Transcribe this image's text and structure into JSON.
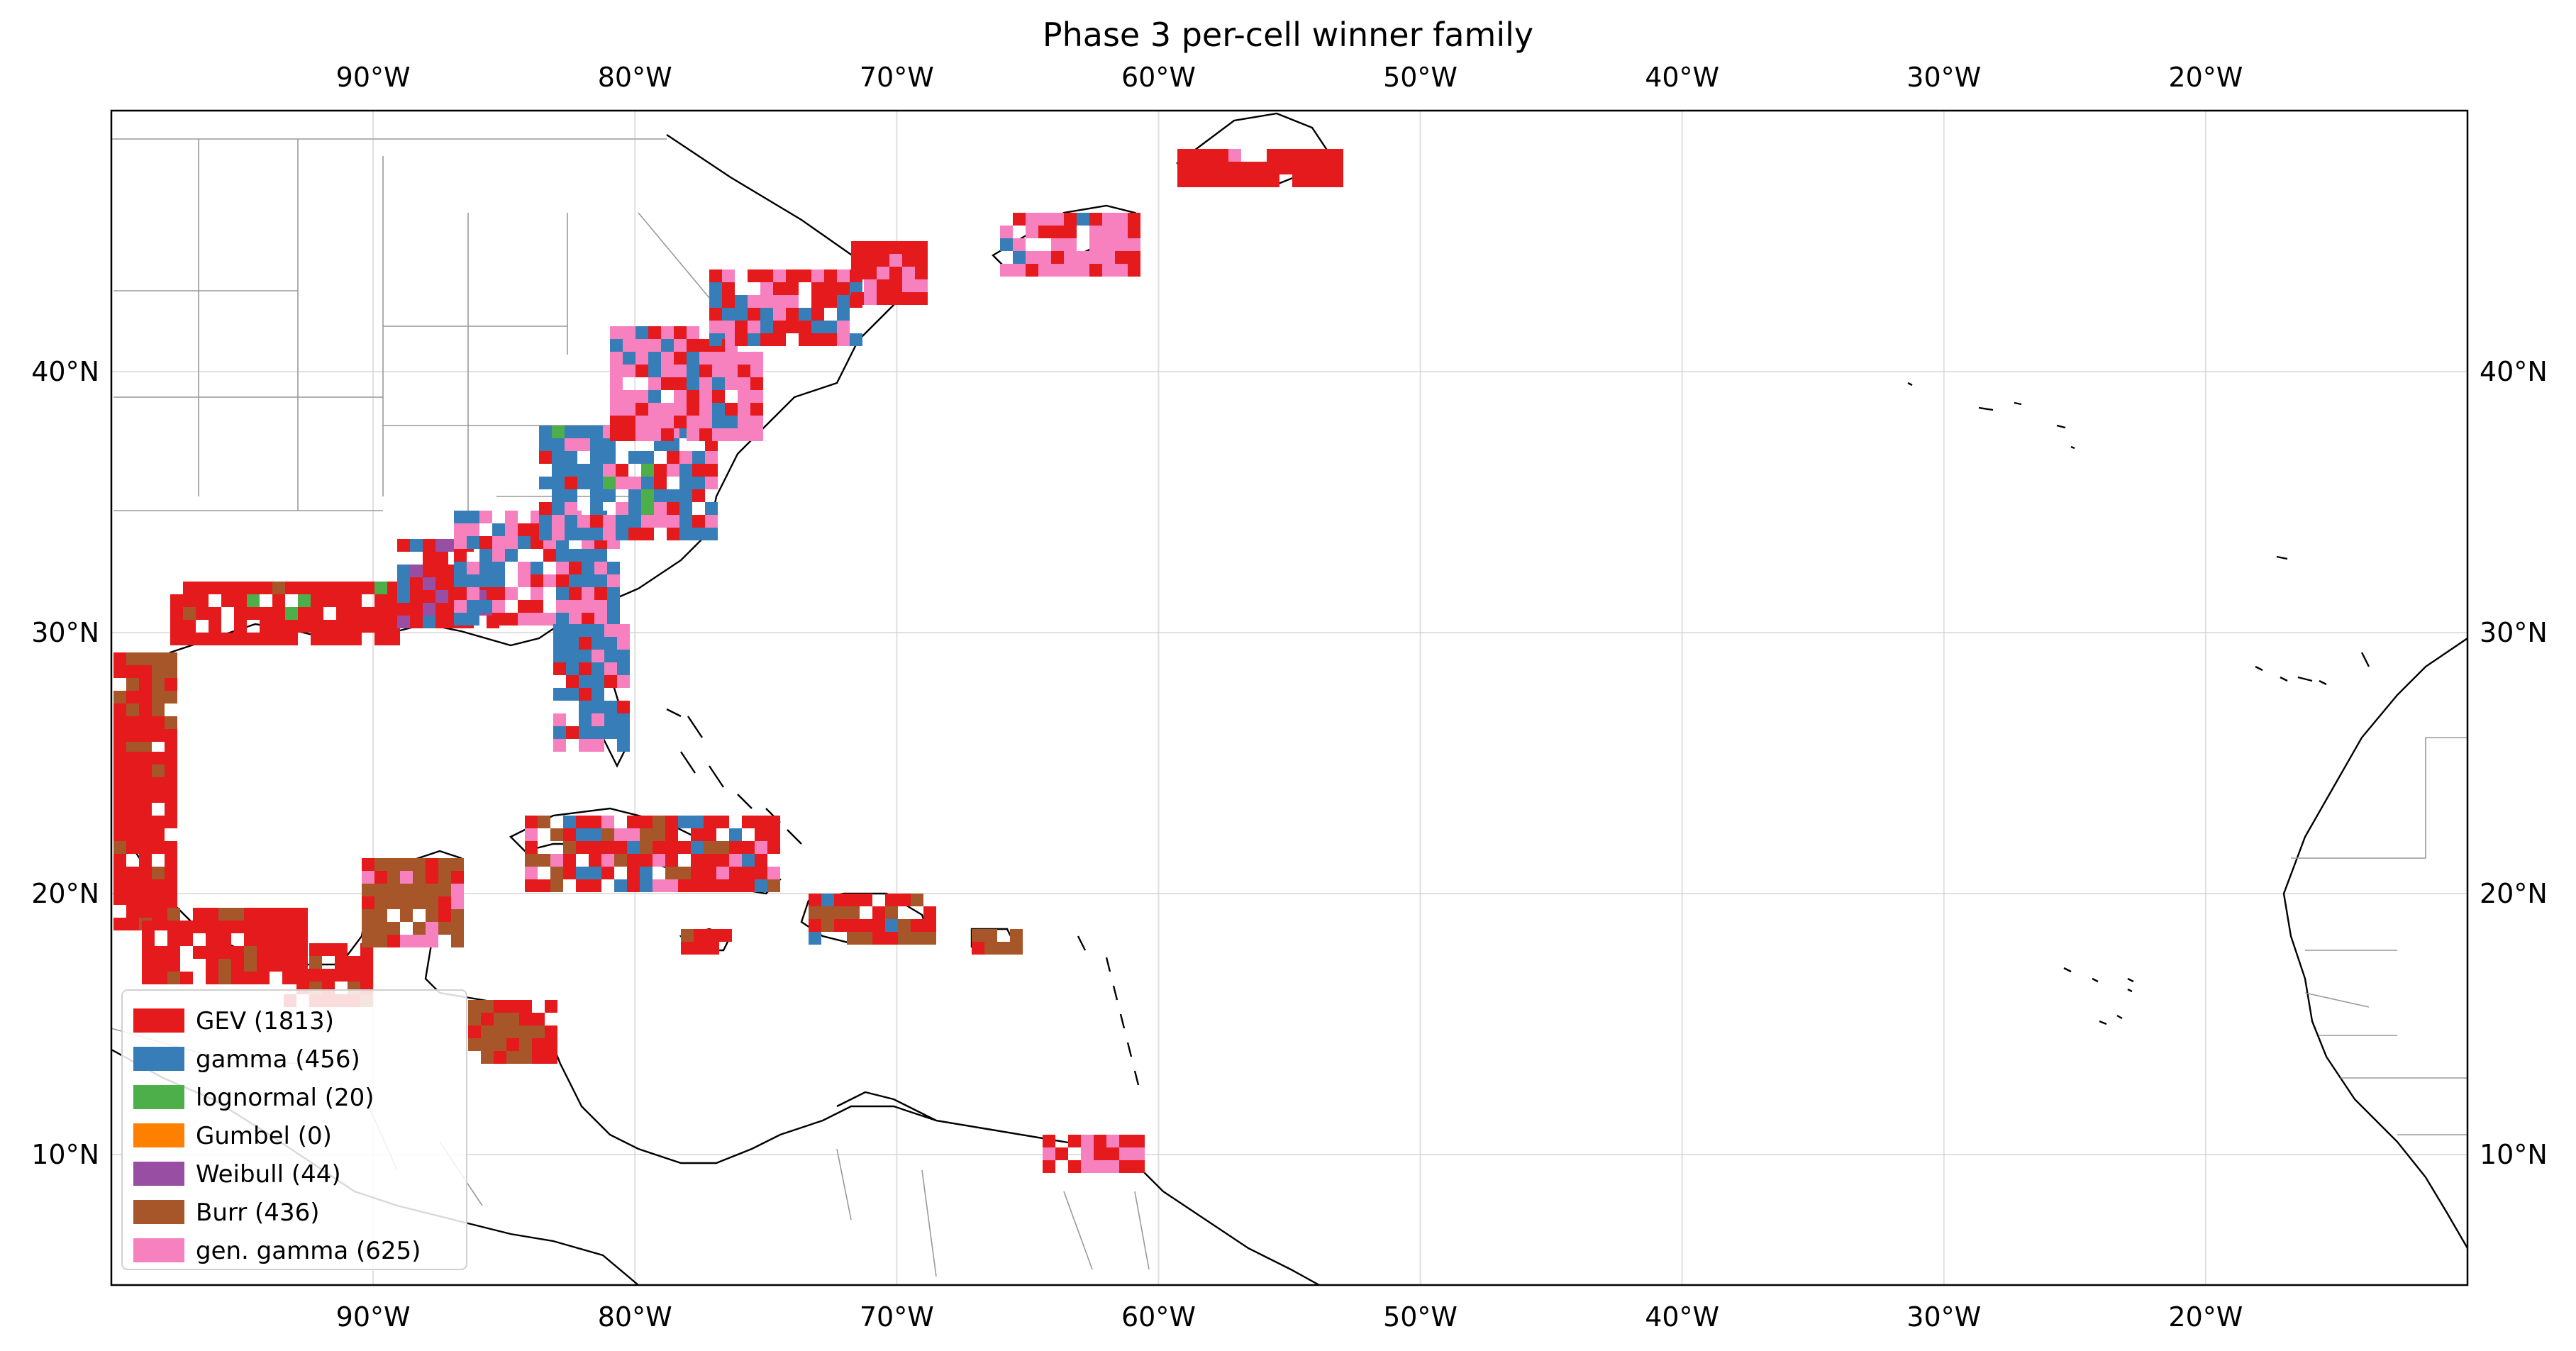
{
  "title": "Phase 3 per-cell winner family",
  "map": {
    "extent": {
      "lon_min": -100,
      "lon_max": -10,
      "lat_min": 5,
      "lat_max": 50
    },
    "lon_ticks": [
      -90,
      -80,
      -70,
      -60,
      -50,
      -40,
      -30,
      -20
    ],
    "lon_tick_labels": [
      "90°W",
      "80°W",
      "70°W",
      "60°W",
      "50°W",
      "40°W",
      "30°W",
      "20°W"
    ],
    "lat_ticks": [
      10,
      20,
      30,
      40
    ],
    "lat_tick_labels": [
      "10°N",
      "20°N",
      "30°N",
      "40°N"
    ],
    "grid": true,
    "legend_position": "lower-left"
  },
  "legend": [
    {
      "label": "GEV (1813)",
      "color": "#e41a1c"
    },
    {
      "label": "gamma (456)",
      "color": "#377eb8"
    },
    {
      "label": "lognormal (20)",
      "color": "#4daf4a"
    },
    {
      "label": "Gumbel (0)",
      "color": "#ff7f00"
    },
    {
      "label": "Weibull (44)",
      "color": "#984ea3"
    },
    {
      "label": "Burr (436)",
      "color": "#a65628"
    },
    {
      "label": "gen. gamma (625)",
      "color": "#f781bf"
    }
  ]
}
